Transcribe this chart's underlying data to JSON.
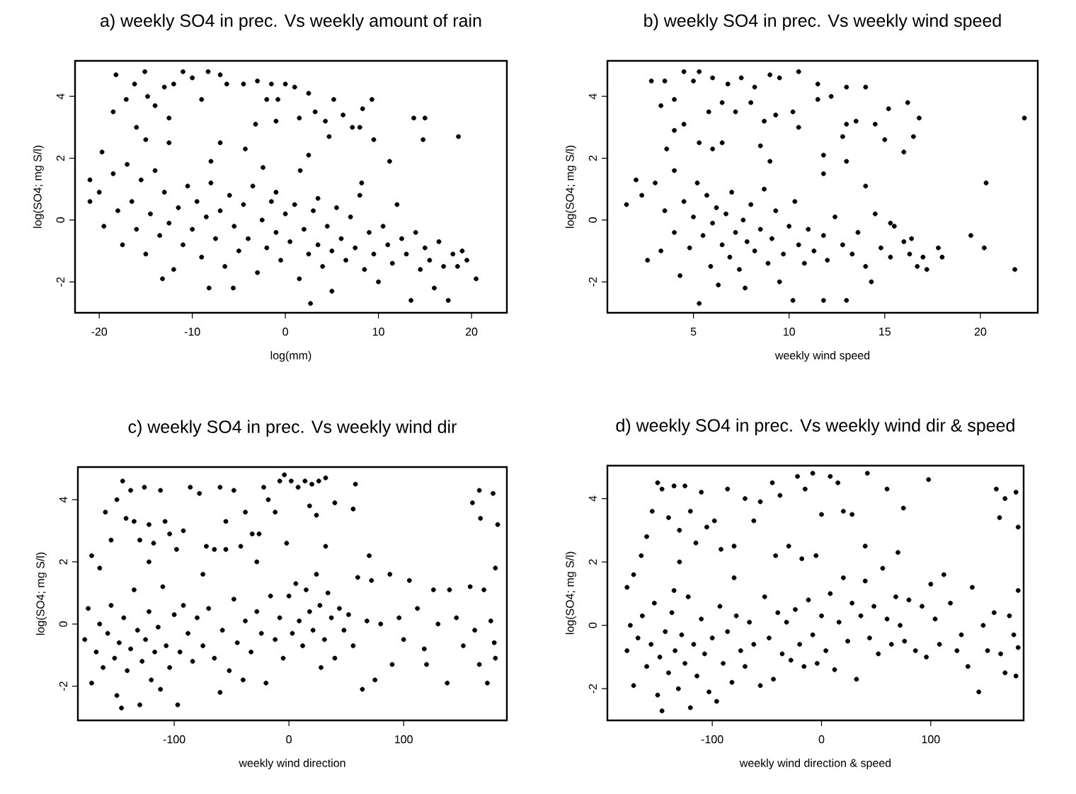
{
  "chart_data": [
    {
      "type": "scatter",
      "title": "a) weekly SO4 in prec. Vs weekly amount of rain",
      "xlabel": "log(mm)",
      "ylabel": "log(SO4; mg S/l)",
      "color": "#000000",
      "marker": "circle",
      "xlim": [
        -22.6,
        23.8
      ],
      "ylim": [
        -3.0,
        5.15
      ],
      "xticks": [
        -20,
        -10,
        0,
        10,
        20
      ],
      "yticks": [
        -2,
        0,
        2,
        4
      ],
      "x": [
        -18.2,
        -16.2,
        -15.1,
        -17.1,
        -18.5,
        -14.8,
        -13.0,
        -12.0,
        -11.0,
        -10.0,
        -8.3,
        -7.0,
        -9.0,
        -12.5,
        -14.0,
        -16,
        -15,
        -19.7,
        -12.5,
        -6.3,
        -4.5,
        -3.0,
        -1.5,
        0,
        1,
        2.5,
        -2,
        -1,
        1.5,
        3.2,
        4.3,
        5.2,
        6.2,
        7.2,
        8.3,
        9.3,
        9.5,
        11.2,
        13.8,
        14.8,
        15,
        18.6,
        -7,
        -4.3,
        -8,
        4.7,
        1.6,
        -2.4,
        2.5,
        -0.8,
        -3.2,
        8.0,
        -21,
        -21,
        -20,
        -19.5,
        -18.5,
        -18,
        -17.5,
        -17,
        -16.5,
        -16,
        -15.5,
        -15,
        -14.5,
        -14,
        -13.5,
        -13.2,
        -13,
        -12.5,
        -12,
        -11.5,
        -11,
        -10.5,
        -10,
        -9.5,
        -9,
        -8.5,
        -8.2,
        -8,
        -7.5,
        -7,
        -6.5,
        -6,
        -5.5,
        -5.6,
        -5,
        -4.5,
        -4,
        -3.5,
        -3,
        -2.5,
        -2,
        -1.5,
        -1,
        -0.5,
        0,
        0.5,
        1,
        1.5,
        2,
        2.5,
        2.7,
        3,
        3.5,
        4,
        4.5,
        5,
        5,
        5.5,
        6,
        6.5,
        7,
        7.5,
        8,
        8.5,
        9,
        9.5,
        10,
        10.5,
        11,
        11.5,
        12,
        12.5,
        13,
        13.5,
        14,
        14.5,
        15,
        15.5,
        16,
        16.5,
        17,
        17.5,
        18,
        18.5,
        19,
        19.5,
        20.5,
        8.2,
        -1,
        3.5
      ],
      "values": [
        4.7,
        4.4,
        4.8,
        3.9,
        3.5,
        4.0,
        4.3,
        4.4,
        4.8,
        4.6,
        4.8,
        4.7,
        3.9,
        3.3,
        3.7,
        3.0,
        2.6,
        2.2,
        2.5,
        4.4,
        4.4,
        4.5,
        4.4,
        4.4,
        4.3,
        4.1,
        3.9,
        3.2,
        3.3,
        3.5,
        3.2,
        3.9,
        3.4,
        3.0,
        3.6,
        3.9,
        2.6,
        1.9,
        3.3,
        2.6,
        3.3,
        2.7,
        2.5,
        2.3,
        1.9,
        2.7,
        1.6,
        1.7,
        2.1,
        3.9,
        3.1,
        3.0,
        1.3,
        0.6,
        0.9,
        -0.2,
        1.5,
        0.3,
        -0.8,
        1.8,
        0.6,
        -0.3,
        1.3,
        -1.1,
        0.2,
        1.6,
        -0.5,
        -1.9,
        0.9,
        -0.1,
        -1.6,
        0.4,
        -0.8,
        1.1,
        -0.3,
        0.6,
        -1.2,
        0.1,
        -2.2,
        1.2,
        -0.6,
        0.3,
        -1.5,
        0.8,
        -0.2,
        -2.2,
        -1.0,
        0.5,
        -0.6,
        1.1,
        -1.7,
        0.0,
        -0.9,
        0.6,
        -0.4,
        -1.3,
        0.2,
        -0.7,
        0.5,
        -1.9,
        -0.3,
        -1.1,
        -2.7,
        0.3,
        -0.8,
        -1.5,
        -0.2,
        -2.3,
        -1.0,
        0.4,
        -0.6,
        -1.3,
        0.1,
        -0.9,
        0.8,
        -1.6,
        -0.4,
        -1.1,
        -2.0,
        -0.2,
        -0.8,
        -1.4,
        0.5,
        -0.6,
        -1.1,
        -2.6,
        -0.4,
        -1.6,
        -0.9,
        -1.3,
        -2.2,
        -0.7,
        -1.5,
        -2.6,
        -1.1,
        -1.5,
        -1.0,
        -1.3,
        -1.9,
        1.2,
        0.9,
        0.7
      ]
    },
    {
      "type": "scatter",
      "title": "b) weekly SO4 in prec. Vs weekly wind speed",
      "xlabel": "weekly wind speed",
      "ylabel": "log(SO4; mg S/l)",
      "color": "#000000",
      "marker": "circle",
      "xlim": [
        0.5,
        23.0
      ],
      "ylim": [
        -3.0,
        5.15
      ],
      "xticks": [
        5,
        10,
        15,
        20
      ],
      "yticks": [
        -2,
        0,
        2,
        4
      ],
      "x": [
        2.8,
        3.5,
        4.5,
        5.3,
        5,
        6,
        6.8,
        7.5,
        8.2,
        9,
        9.5,
        10.5,
        11.5,
        13,
        14,
        3.3,
        4,
        4.5,
        5.8,
        6.5,
        7.2,
        8,
        8.7,
        9.3,
        10.2,
        10.5,
        11.5,
        12.2,
        13,
        13.5,
        14.5,
        15.2,
        16.2,
        16.8,
        22.3,
        4,
        5.3,
        6.5,
        8.5,
        12.8,
        15,
        16,
        16.5,
        3.6,
        6,
        9,
        11.8,
        20.3,
        14,
        13,
        11.8,
        1.5,
        2,
        2.3,
        2.6,
        3,
        3.3,
        3.5,
        4,
        4,
        4.3,
        4.5,
        4.8,
        5,
        5.2,
        5.3,
        5.5,
        5.7,
        5.9,
        6,
        6.2,
        6.3,
        6.5,
        6.7,
        6.9,
        7,
        7.2,
        7.4,
        7.6,
        7.7,
        7.8,
        8,
        8.2,
        8.5,
        8.7,
        8.9,
        9.1,
        9.3,
        9.5,
        9.7,
        10,
        10.2,
        10.3,
        10.5,
        10.8,
        11,
        11.3,
        11.8,
        11.8,
        12,
        12.4,
        12.8,
        13,
        13.3,
        13.6,
        14,
        14.3,
        14.5,
        14.8,
        15.3,
        15.5,
        16,
        16.3,
        16.7,
        17,
        17.2,
        17.8,
        18,
        19.5,
        20.2,
        21.8,
        15.3,
        16.4
      ],
      "values": [
        4.5,
        4.5,
        4.8,
        4.8,
        4.5,
        4.6,
        4.4,
        4.6,
        4.3,
        4.7,
        4.6,
        4.8,
        4.4,
        4.3,
        4.3,
        3.7,
        3.9,
        3.1,
        3.5,
        3.8,
        3.5,
        3.8,
        3.2,
        3.4,
        3.5,
        3.0,
        3.9,
        4.0,
        3.1,
        3.2,
        3.1,
        3.6,
        3.8,
        3.3,
        3.3,
        2.9,
        2.5,
        2.5,
        2.4,
        2.7,
        2.6,
        2.2,
        2.7,
        2.3,
        2.3,
        1.9,
        2.1,
        1.2,
        1.1,
        1.9,
        1.5,
        0.5,
        1.3,
        0.8,
        -1.3,
        1.2,
        -1.0,
        0.3,
        -0.4,
        1.6,
        -1.8,
        0.6,
        -0.9,
        0.1,
        1.2,
        -2.7,
        -0.5,
        0.8,
        -1.5,
        -0.1,
        0.4,
        -2.1,
        -0.8,
        0.2,
        -1.2,
        0.9,
        -0.4,
        -1.6,
        0.0,
        -2.2,
        -0.7,
        0.5,
        -1.0,
        -0.3,
        1.0,
        -1.4,
        -0.6,
        0.3,
        -2.0,
        -1.1,
        -0.2,
        -2.6,
        0.6,
        -0.8,
        -1.4,
        -0.3,
        -1.0,
        -0.5,
        -2.6,
        -1.3,
        0.1,
        -0.8,
        -2.6,
        -1.1,
        -0.4,
        -1.5,
        -2.0,
        0.2,
        -0.9,
        -1.2,
        -0.2,
        -0.7,
        -1.1,
        -1.5,
        -1.2,
        -1.6,
        -0.9,
        -1.2,
        -0.5,
        -0.9,
        -1.6,
        -0.1,
        -0.6
      ]
    },
    {
      "type": "scatter",
      "title": "c) weekly SO4 in prec. Vs weekly wind dir",
      "xlabel": "weekly wind direction",
      "ylabel": "log(SO4; mg S/l)",
      "color": "#000000",
      "marker": "circle",
      "xlim": [
        -184,
        190
      ],
      "ylim": [
        -3.1,
        5.05
      ],
      "xticks": [
        -100,
        0,
        100
      ],
      "yticks": [
        -2,
        0,
        2,
        4
      ],
      "x": [
        -172,
        -165,
        -160,
        -155,
        -150,
        -145,
        -142,
        -138,
        -135,
        -130,
        -126,
        -122,
        -118,
        -112,
        -108,
        -104,
        -98,
        -92,
        -86,
        -78,
        -72,
        -65,
        -60,
        -55,
        -48,
        -42,
        -38,
        -32,
        -26,
        -22,
        -18,
        -12,
        -8,
        -4,
        2,
        8,
        14,
        20,
        26,
        32,
        40,
        58,
        56,
        18,
        24,
        -2,
        -28,
        -55,
        -75,
        160,
        166,
        167,
        178,
        182,
        -122,
        32,
        70,
        -178,
        -175,
        -172,
        -168,
        -165,
        -162,
        -158,
        -155,
        -152,
        -150,
        -148,
        -146,
        -144,
        -141,
        -138,
        -135,
        -132,
        -130,
        -128,
        -125,
        -122,
        -120,
        -117,
        -114,
        -112,
        -110,
        -107,
        -104,
        -100,
        -97,
        -95,
        -92,
        -88,
        -84,
        -80,
        -75,
        -70,
        -65,
        -60,
        -58,
        -52,
        -48,
        -45,
        -40,
        -38,
        -33,
        -28,
        -24,
        -20,
        -16,
        -12,
        -8,
        -5,
        0,
        3,
        6,
        9,
        12,
        15,
        18,
        21,
        24,
        27,
        28,
        31,
        34,
        37,
        40,
        44,
        48,
        52,
        56,
        60,
        64,
        68,
        72,
        75,
        80,
        88,
        90,
        96,
        100,
        105,
        112,
        118,
        120,
        126,
        130,
        138,
        140,
        146,
        152,
        158,
        162,
        166,
        170,
        173,
        176,
        179,
        180,
        180
      ],
      "values": [
        2.2,
        1.8,
        3.6,
        2.7,
        4.0,
        4.6,
        3.4,
        4.3,
        3.3,
        2.7,
        4.4,
        3.2,
        2.6,
        4.3,
        3.3,
        2.9,
        2.4,
        3.0,
        4.4,
        4.2,
        2.5,
        2.4,
        4.4,
        3.3,
        4.3,
        2.5,
        3.6,
        2.9,
        2.9,
        4.4,
        4.0,
        3.6,
        4.6,
        4.8,
        4.6,
        4.4,
        4.6,
        4.5,
        4.6,
        4.7,
        3.9,
        4.5,
        3.7,
        3.8,
        3.5,
        2.6,
        2.0,
        2.4,
        1.6,
        3.9,
        4.3,
        3.4,
        4.2,
        3.2,
        2.0,
        2.5,
        2.2,
        -0.5,
        0.5,
        -1.9,
        -0.9,
        0.0,
        -1.4,
        -0.3,
        0.6,
        -1.1,
        -2.3,
        -0.6,
        -2.7,
        0.2,
        -1.5,
        -0.8,
        1.1,
        -0.2,
        -2.6,
        -1.2,
        -0.5,
        0.4,
        -1.8,
        -0.9,
        -0.1,
        -2.1,
        1.2,
        -0.7,
        -1.4,
        0.3,
        -2.6,
        -0.9,
        0.6,
        -0.3,
        -1.2,
        0.2,
        -0.7,
        0.5,
        -1.1,
        -2.2,
        -0.2,
        -1.5,
        0.8,
        -0.6,
        -1.8,
        0.1,
        -0.9,
        0.4,
        -0.3,
        -1.9,
        0.9,
        -0.5,
        0.2,
        -1.1,
        0.9,
        -0.3,
        1.3,
        0.1,
        -0.7,
        1.1,
        0.4,
        -0.2,
        1.6,
        0.6,
        -1.4,
        -0.5,
        1.0,
        0.2,
        -1.1,
        0.5,
        -0.2,
        0.3,
        -0.7,
        1.5,
        -2.1,
        0.1,
        1.4,
        -1.8,
        0.0,
        1.6,
        -1.3,
        0.2,
        -0.5,
        1.4,
        0.5,
        -0.8,
        -1.3,
        1.1,
        0.0,
        -1.9,
        1.1,
        0.2,
        -0.7,
        1.2,
        -0.2,
        -1.3,
        1.1,
        -1.9,
        0.1,
        -0.6,
        -1.1,
        1.8
      ]
    },
    {
      "type": "scatter",
      "title": "d) weekly SO4 in prec. Vs weekly wind dir & speed",
      "xlabel": "weekly wind direction & speed",
      "ylabel": "log(SO4; mg S/l)",
      "color": "#000000",
      "marker": "circle",
      "xlim": [
        -196,
        185
      ],
      "ylim": [
        -3.0,
        5.04
      ],
      "xticks": [
        -100,
        0,
        100
      ],
      "yticks": [
        -2,
        0,
        2,
        4
      ],
      "x": [
        -178,
        -172,
        -165,
        -160,
        -155,
        -150,
        -146,
        -140,
        -135,
        -130,
        -125,
        -120,
        -115,
        -110,
        -105,
        -98,
        -92,
        -86,
        -80,
        -70,
        -62,
        -56,
        -45,
        -38,
        -30,
        -22,
        -15,
        -8,
        0,
        8,
        15,
        20,
        28,
        42,
        60,
        75,
        98,
        160,
        163,
        168,
        178,
        180,
        -42,
        -18,
        -5,
        40,
        70,
        -130,
        -80,
        -135,
        -178,
        -175,
        -172,
        -168,
        -164,
        -160,
        -156,
        -153,
        -150,
        -148,
        -146,
        -143,
        -140,
        -137,
        -134,
        -131,
        -128,
        -125,
        -122,
        -120,
        -117,
        -114,
        -110,
        -107,
        -103,
        -100,
        -96,
        -93,
        -90,
        -86,
        -82,
        -78,
        -74,
        -70,
        -66,
        -62,
        -56,
        -52,
        -48,
        -44,
        -40,
        -36,
        -32,
        -28,
        -24,
        -20,
        -16,
        -12,
        -8,
        -4,
        0,
        4,
        8,
        12,
        16,
        20,
        24,
        28,
        32,
        36,
        40,
        44,
        48,
        52,
        56,
        60,
        64,
        68,
        72,
        76,
        80,
        86,
        92,
        96,
        100,
        104,
        108,
        112,
        118,
        124,
        128,
        134,
        138,
        144,
        148,
        152,
        158,
        164,
        168,
        172,
        176,
        178,
        180,
        180
      ],
      "values": [
        1.2,
        1.6,
        2.2,
        2.8,
        3.6,
        4.5,
        4.3,
        3.4,
        4.4,
        3.0,
        4.4,
        3.6,
        2.6,
        4.2,
        3.1,
        3.3,
        2.4,
        4.3,
        2.5,
        4.0,
        3.3,
        3.9,
        4.5,
        4.1,
        2.5,
        4.7,
        4.3,
        4.8,
        3.5,
        4.7,
        4.5,
        3.6,
        3.5,
        4.8,
        4.3,
        3.7,
        4.6,
        4.3,
        3.4,
        4.0,
        4.2,
        3.1,
        2.2,
        2.1,
        2.2,
        2.5,
        2.3,
        2.0,
        1.5,
        1.1,
        -0.8,
        0.0,
        -1.9,
        -0.4,
        0.3,
        -1.3,
        -0.6,
        0.7,
        -2.2,
        -1.0,
        -2.7,
        -0.2,
        -1.5,
        0.4,
        -0.8,
        -2.0,
        -0.3,
        -1.2,
        0.9,
        -2.6,
        -0.6,
        -1.6,
        0.2,
        -0.9,
        -2.1,
        -0.4,
        -2.4,
        0.6,
        -1.2,
        -0.2,
        -1.8,
        0.3,
        -0.8,
        -1.3,
        0.1,
        -0.6,
        -1.9,
        0.9,
        -0.4,
        -1.7,
        0.4,
        -0.9,
        0.1,
        -1.1,
        0.5,
        -0.6,
        -1.3,
        0.8,
        -0.3,
        -1.2,
        0.3,
        -0.8,
        1.0,
        -1.4,
        0.1,
        1.5,
        -0.5,
        0.7,
        -1.7,
        0.3,
        1.4,
        -0.4,
        0.6,
        -0.9,
        1.8,
        0.2,
        -0.6,
        0.9,
        0.0,
        -0.5,
        0.8,
        -0.8,
        0.6,
        -1.0,
        1.3,
        0.2,
        -0.6,
        1.6,
        0.7,
        -0.8,
        -0.3,
        -1.3,
        1.2,
        -2.1,
        0.0,
        -0.8,
        0.4,
        -0.9,
        -1.5,
        0.3,
        -0.3,
        -1.6,
        1.1,
        -0.7
      ]
    }
  ]
}
